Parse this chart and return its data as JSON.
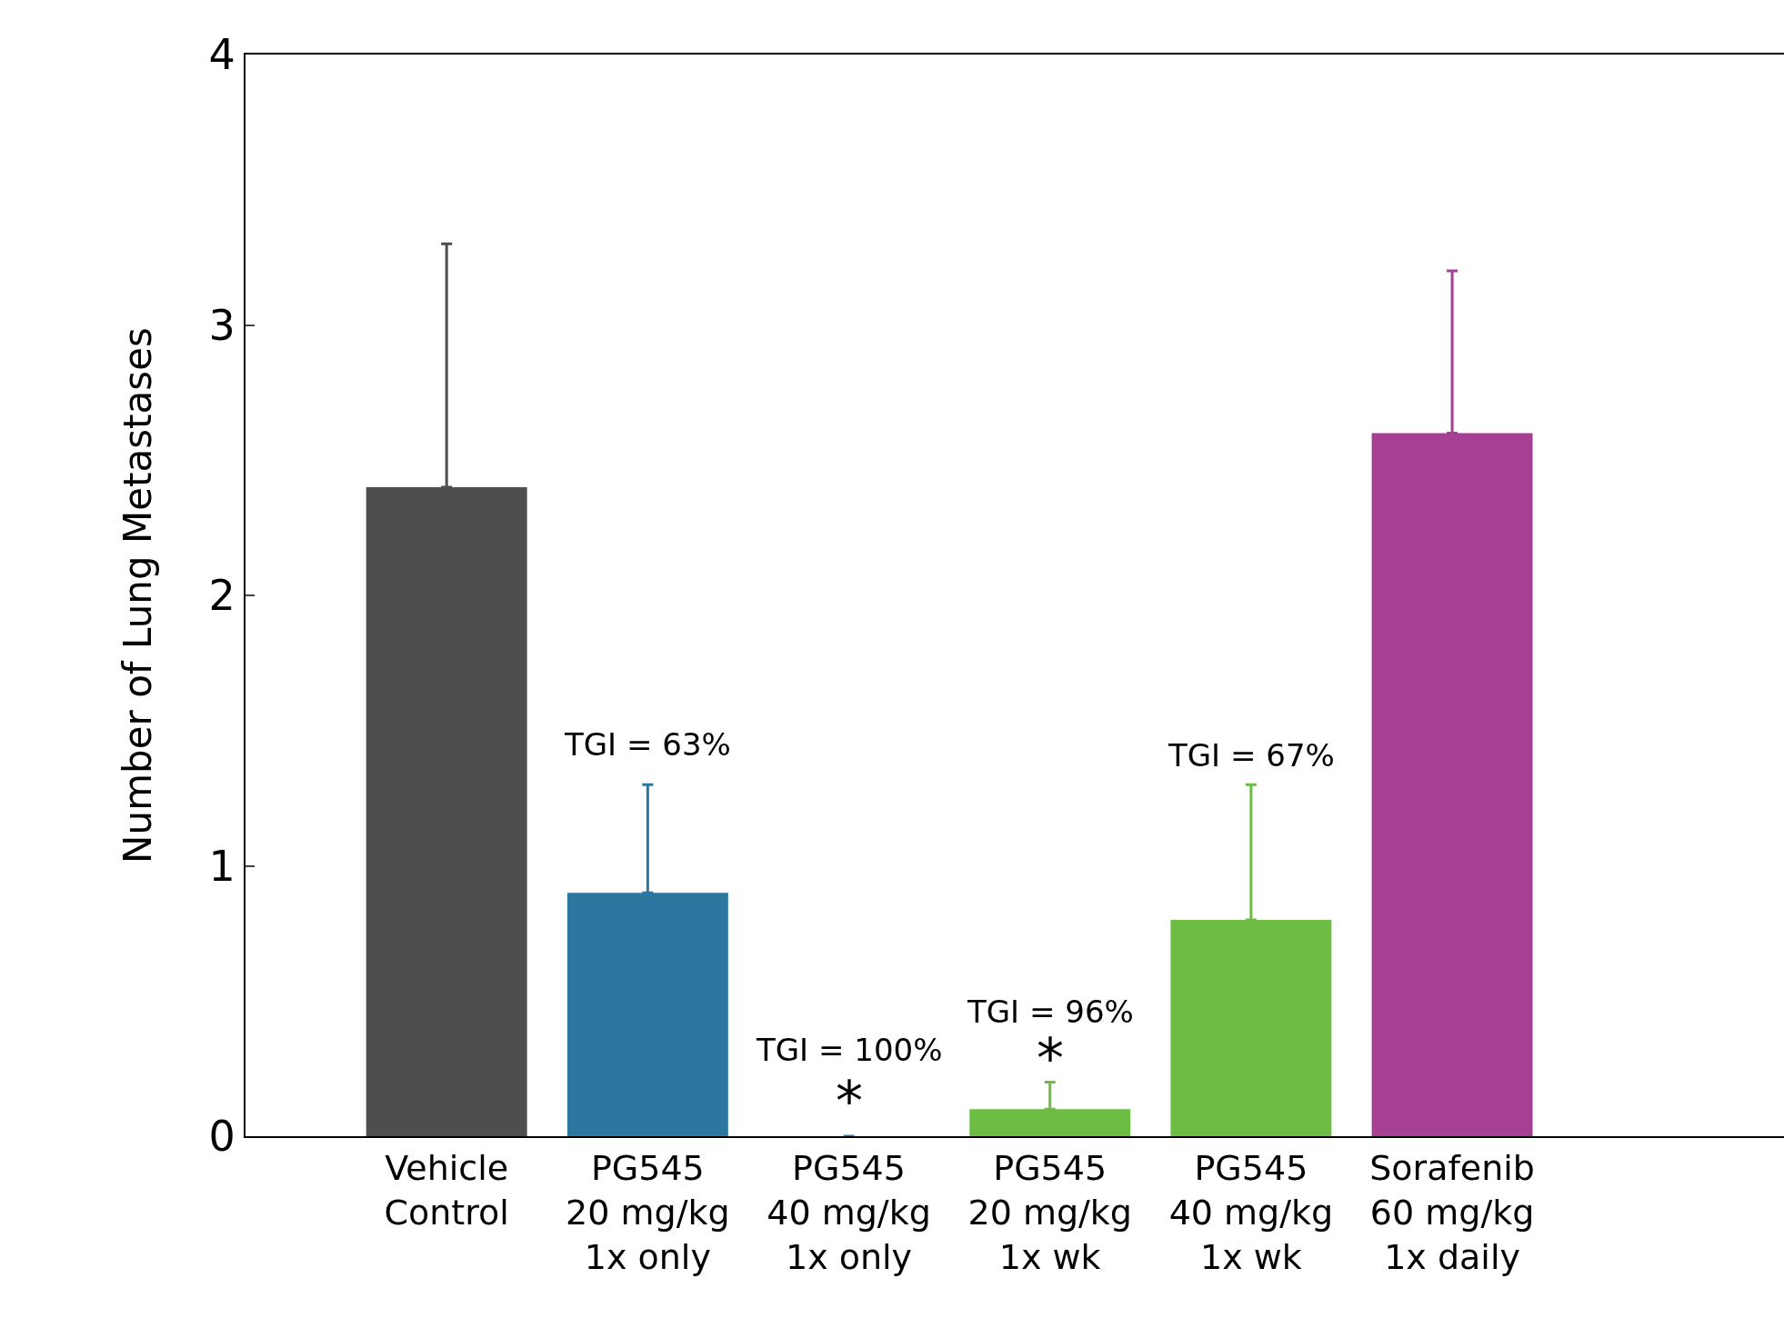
{
  "chart_data": {
    "type": "bar",
    "ylabel": "Number of Lung Metastases",
    "categories": [
      "Vehicle\nControl",
      "PG545\n20 mg/kg\n1x only",
      "PG545\n40 mg/kg\n1x only",
      "PG545\n20 mg/kg\n1x wk",
      "PG545\n40 mg/kg\n1x wk",
      "Sorafenib\n60 mg/kg\n1x daily"
    ],
    "values": [
      2.4,
      0.9,
      0,
      0.1,
      0.8,
      2.6
    ],
    "colors": [
      "#4d4f4e",
      "#2c77a0",
      "#2c77a0",
      "#6dbd45",
      "#6dbd45",
      "#a64094"
    ],
    "errors": [
      [
        2.4,
        3.3
      ],
      [
        0.9,
        1.3
      ],
      [
        0,
        0
      ],
      [
        0.1,
        0.2
      ],
      [
        0.8,
        1.3
      ],
      [
        2.6,
        3.2
      ]
    ],
    "ylim": [
      0,
      4
    ],
    "yticks": [
      0,
      1,
      2,
      3,
      4
    ],
    "annotations": [
      "TGI = 63%",
      "TGI = 100%",
      "*",
      "TGI = 96%",
      "*",
      "TGI = 67%"
    ]
  }
}
